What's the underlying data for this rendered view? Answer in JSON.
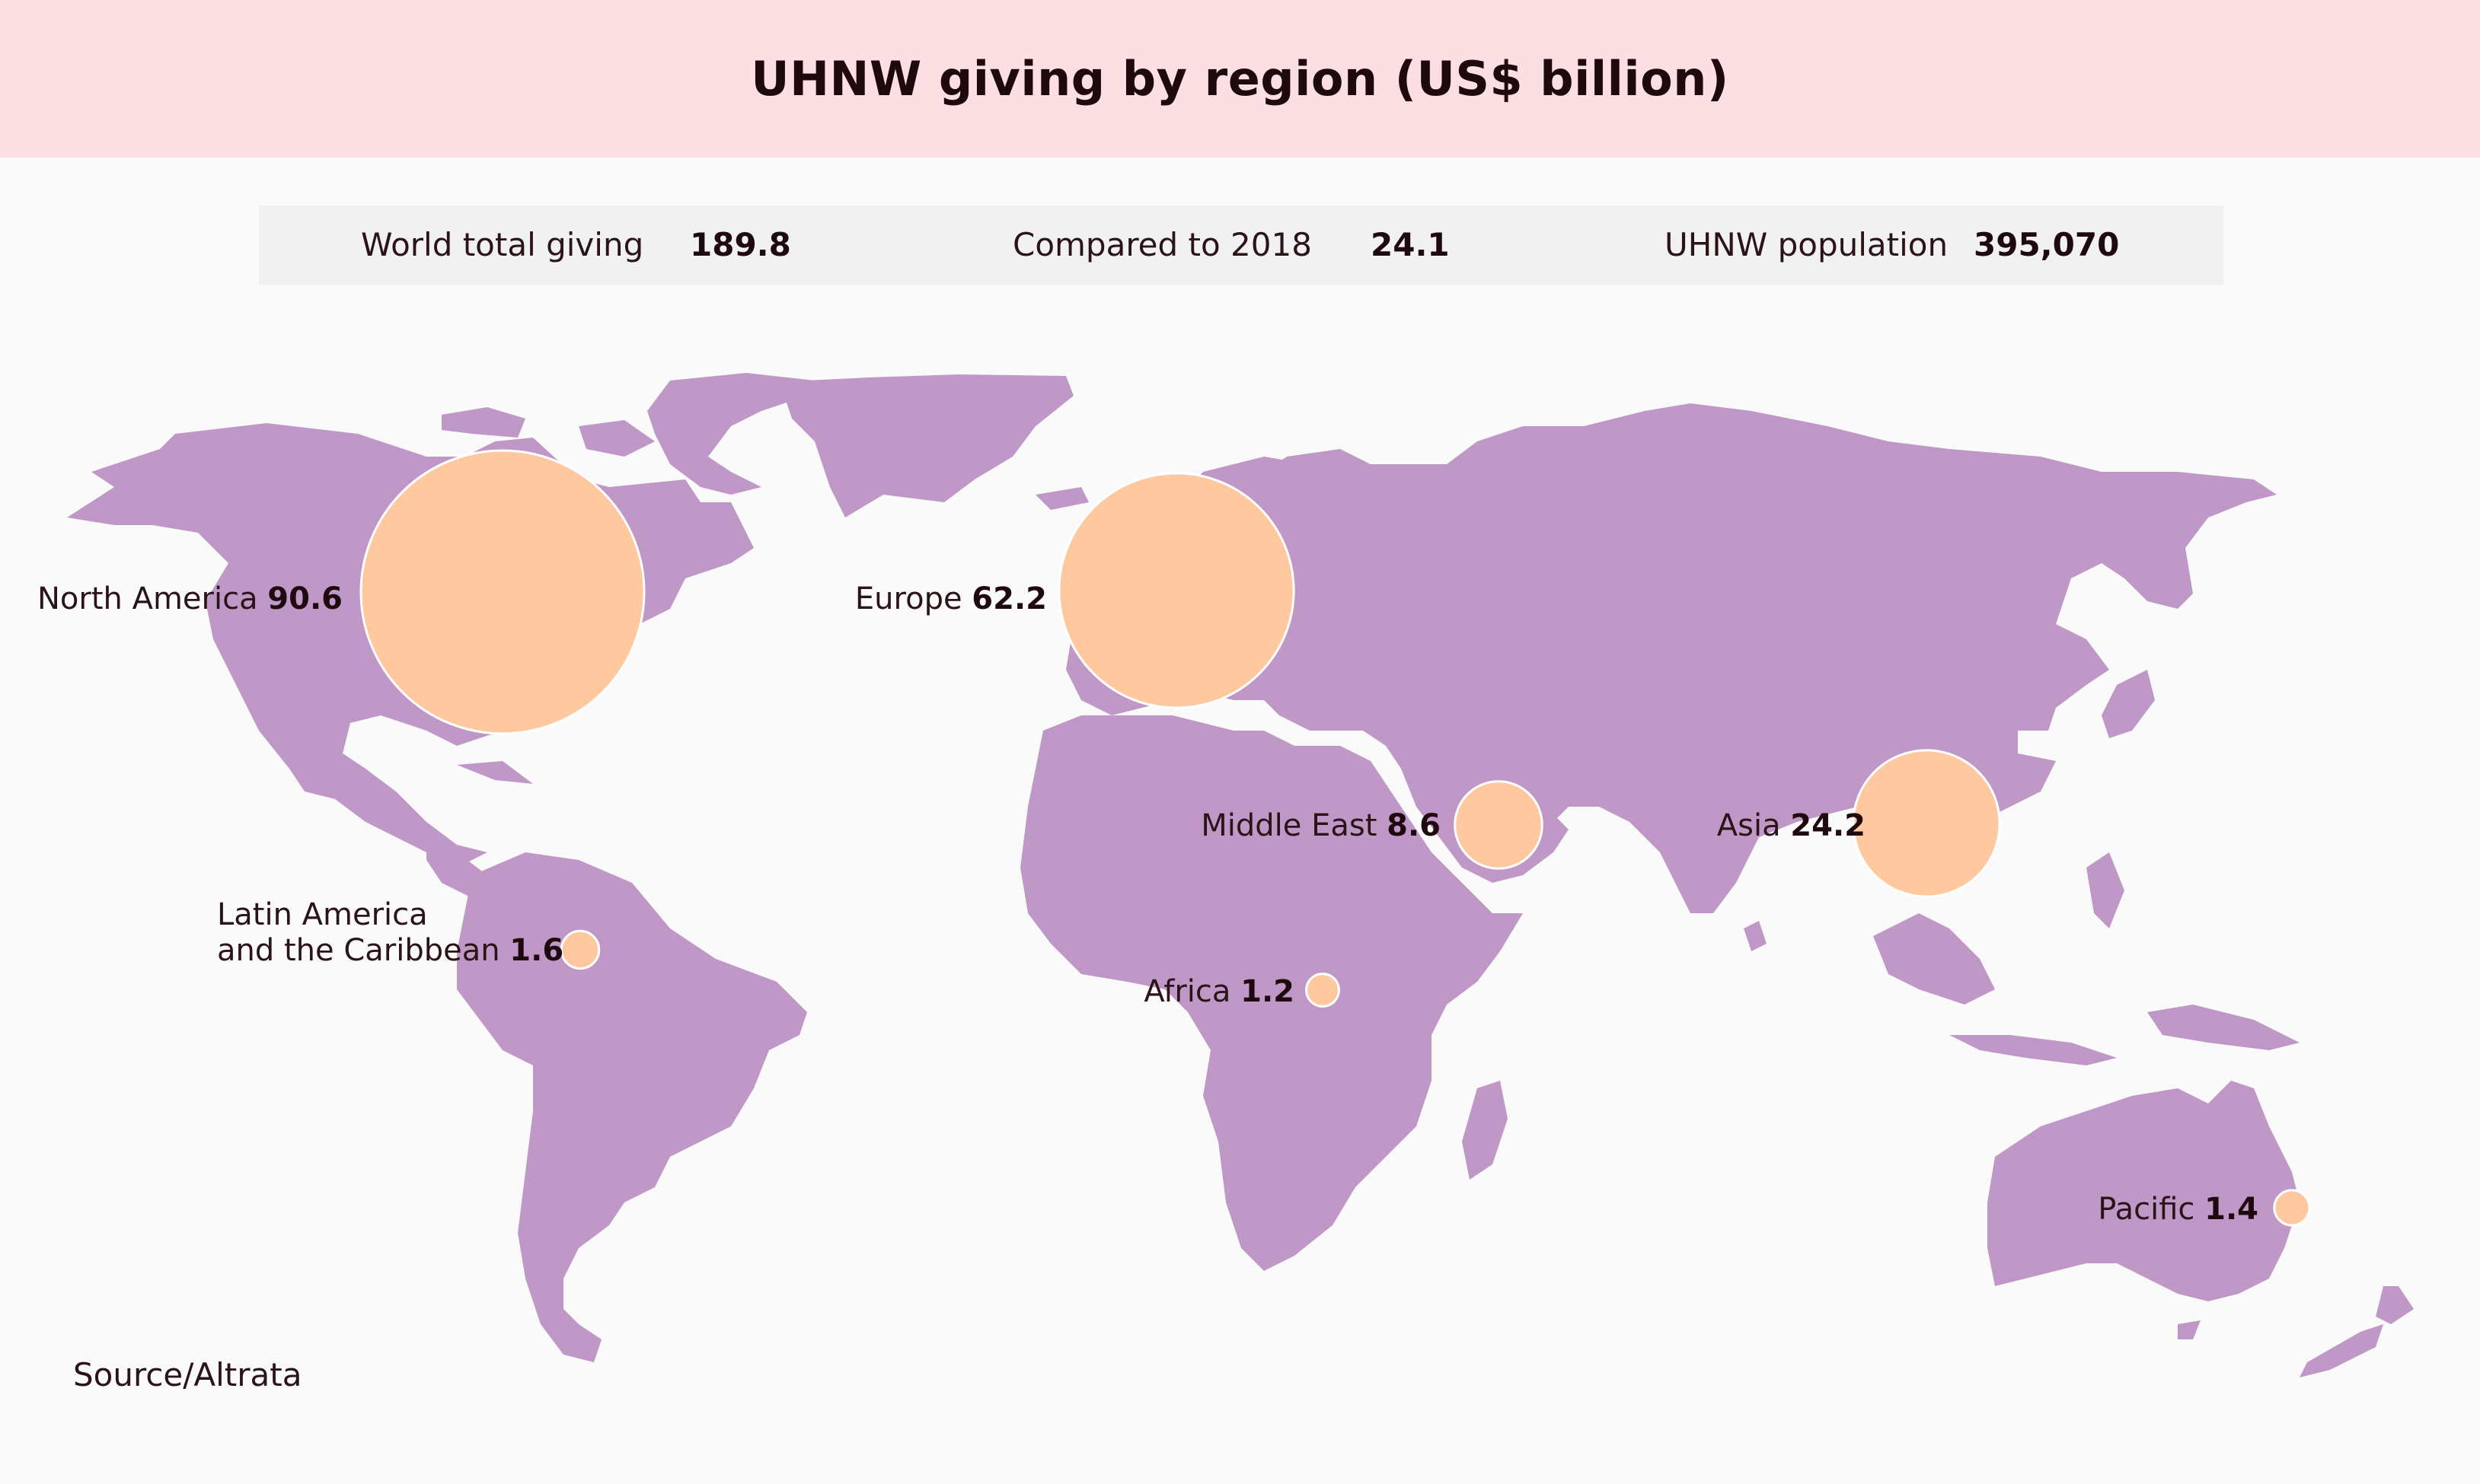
{
  "title": "UHNW giving by region (US$ billion)",
  "stats": [
    {
      "label": "World total giving",
      "value": "189.8"
    },
    {
      "label": "Compared to 2018",
      "value": "24.1"
    },
    {
      "label": "UHNW population",
      "value": "395,070"
    }
  ],
  "regions": [
    {
      "name": "North America",
      "value": 90.6,
      "label": "North America",
      "value_text": "90.6"
    },
    {
      "name": "Europe",
      "value": 62.2,
      "label": "Europe",
      "value_text": "62.2"
    },
    {
      "name": "Middle East",
      "value": 8.6,
      "label": "Middle East",
      "value_text": "8.6"
    },
    {
      "name": "Asia",
      "value": 24.2,
      "label": "Asia",
      "value_text": "24.2"
    },
    {
      "name": "Latin America and the Caribbean",
      "value": 1.6,
      "label_lines": [
        "Latin America",
        "and the Caribbean"
      ],
      "value_text": "1.6"
    },
    {
      "name": "Africa",
      "value": 1.2,
      "label": "Africa",
      "value_text": "1.2"
    },
    {
      "name": "Pacific",
      "value": 1.4,
      "label": "Pacific",
      "value_text": "1.4"
    }
  ],
  "source": "Source/Altrata",
  "colors": {
    "header_bg": "#fcdfe2",
    "land": "#bf98c7",
    "bubble_fill": "#ffc89e",
    "bubble_overlap": "#d28a93",
    "bubble_stroke": "#ffffff"
  }
}
